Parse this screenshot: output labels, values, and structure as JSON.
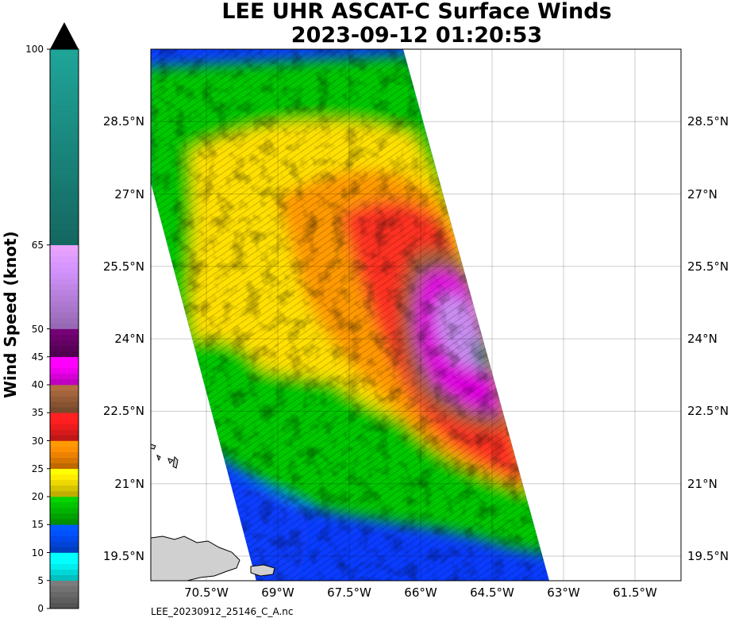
{
  "title": {
    "line1": "LEE UHR ASCAT-C Surface Winds",
    "line2": "2023-09-12 01:20:53"
  },
  "colorbar": {
    "label": "Wind Speed (knot)",
    "ticks": [
      "0",
      "5",
      "10",
      "15",
      "20",
      "25",
      "30",
      "35",
      "40",
      "45",
      "50",
      "65",
      "100"
    ],
    "tick_values": [
      0,
      5,
      10,
      15,
      20,
      25,
      30,
      35,
      40,
      45,
      50,
      65,
      100
    ],
    "range": [
      0,
      100
    ],
    "extend": "max",
    "bands": [
      {
        "from": 0,
        "to": 5,
        "color": "#707070"
      },
      {
        "from": 5,
        "to": 10,
        "color": "#00ffff"
      },
      {
        "from": 10,
        "to": 15,
        "color": "#0050ff"
      },
      {
        "from": 15,
        "to": 20,
        "color": "#00c000"
      },
      {
        "from": 20,
        "to": 25,
        "color": "#ffe800"
      },
      {
        "from": 25,
        "to": 30,
        "color": "#ff8c00"
      },
      {
        "from": 30,
        "to": 35,
        "color": "#ff1e1e"
      },
      {
        "from": 35,
        "to": 40,
        "color": "#a0623a"
      },
      {
        "from": 40,
        "to": 45,
        "color": "#ff00ff"
      },
      {
        "from": 45,
        "to": 50,
        "color": "#6a006a"
      },
      {
        "from": 50,
        "to": 65,
        "color": "#c88cf0"
      },
      {
        "from": 65,
        "to": 100,
        "color": "#1a8a80"
      }
    ]
  },
  "map": {
    "lon_labels": [
      "70.5°W",
      "69°W",
      "67.5°W",
      "66°W",
      "64.5°W",
      "63°W",
      "61.5°W"
    ],
    "lon_values": [
      -70.5,
      -69,
      -67.5,
      -66,
      -64.5,
      -63,
      -61.5
    ],
    "lat_labels": [
      "28.5°N",
      "27°N",
      "25.5°N",
      "24°N",
      "22.5°N",
      "21°N",
      "19.5°N"
    ],
    "lat_values": [
      28.5,
      27,
      25.5,
      24,
      22.5,
      21,
      19.5
    ],
    "gridlines": true,
    "land_color": "#d0d0d0"
  },
  "filename": "LEE_20230912_25146_C_A.nc"
}
